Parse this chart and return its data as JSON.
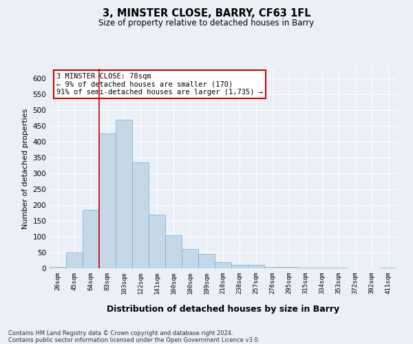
{
  "title": "3, MINSTER CLOSE, BARRY, CF63 1FL",
  "subtitle": "Size of property relative to detached houses in Barry",
  "xlabel": "Distribution of detached houses by size in Barry",
  "ylabel": "Number of detached properties",
  "footnote": "Contains HM Land Registry data © Crown copyright and database right 2024.\nContains public sector information licensed under the Open Government Licence v3.0.",
  "bar_color": "#c5d8e8",
  "bar_edge_color": "#7aabcc",
  "background_color": "#eaf0f6",
  "grid_color": "#ffffff",
  "vline_color": "#cc0000",
  "annotation_box_color": "#ffffff",
  "annotation_border_color": "#cc0000",
  "annotation_text_line1": "3 MINSTER CLOSE: 78sqm",
  "annotation_text_line2": "← 9% of detached houses are smaller (170)",
  "annotation_text_line3": "91% of semi-detached houses are larger (1,735) →",
  "categories": [
    "26sqm",
    "45sqm",
    "64sqm",
    "83sqm",
    "103sqm",
    "122sqm",
    "141sqm",
    "160sqm",
    "180sqm",
    "199sqm",
    "218sqm",
    "238sqm",
    "257sqm",
    "276sqm",
    "295sqm",
    "315sqm",
    "334sqm",
    "353sqm",
    "372sqm",
    "392sqm",
    "411sqm"
  ],
  "values": [
    5,
    50,
    185,
    425,
    470,
    335,
    170,
    105,
    60,
    45,
    20,
    10,
    10,
    5,
    5,
    3,
    2,
    2,
    1,
    1,
    2
  ],
  "ylim": [
    0,
    630
  ],
  "yticks": [
    0,
    50,
    100,
    150,
    200,
    250,
    300,
    350,
    400,
    450,
    500,
    550,
    600
  ]
}
